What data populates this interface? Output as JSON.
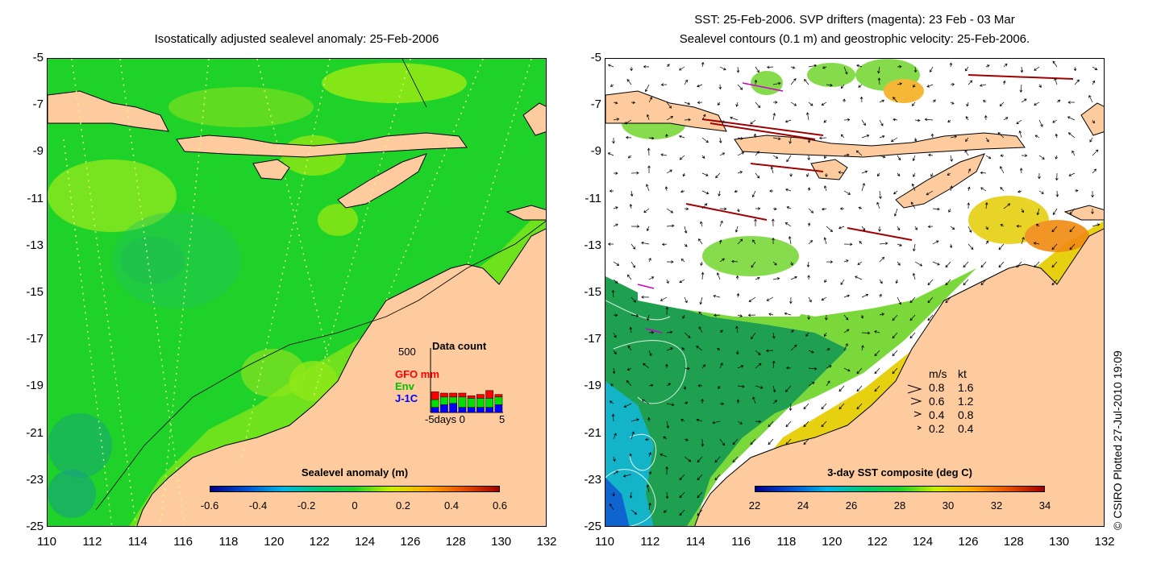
{
  "left_panel": {
    "title": "Isostatically adjusted sealevel anomaly: 25-Feb-2006",
    "colorbar": {
      "title": "Sealevel anomaly (m)",
      "ticks": [
        "-0.6",
        "-0.4",
        "-0.2",
        "0",
        "0.2",
        "0.4",
        "0.6"
      ],
      "colors": [
        "#00008b",
        "#0050d0",
        "#00b4e6",
        "#00c878",
        "#1fd22a",
        "#c8f000",
        "#ffaa00",
        "#e65000",
        "#a00000"
      ]
    },
    "data_count": {
      "title": "Data count",
      "ymax_label": "500",
      "series": [
        "GFO mm",
        "Env",
        "J-1C"
      ],
      "series_colors": [
        "#ff0000",
        "#00e000",
        "#0000ff"
      ],
      "xlabel": "-5days 0",
      "xmax_label": "5",
      "bars": [
        {
          "gfo": 60,
          "env": 60,
          "j1c": 40
        },
        {
          "gfo": 30,
          "env": 60,
          "j1c": 60
        },
        {
          "gfo": 30,
          "env": 50,
          "j1c": 70
        },
        {
          "gfo": 30,
          "env": 80,
          "j1c": 40
        },
        {
          "gfo": 20,
          "env": 70,
          "j1c": 40
        },
        {
          "gfo": 30,
          "env": 70,
          "j1c": 40
        },
        {
          "gfo": 60,
          "env": 70,
          "j1c": 40
        },
        {
          "gfo": 20,
          "env": 60,
          "j1c": 60
        }
      ]
    }
  },
  "right_panel": {
    "title_line1": "SST: 25-Feb-2006. SVP drifters (magenta): 23 Feb - 03 Mar",
    "title_line2": "Sealevel contours (0.1 m) and geostrophic velocity: 25-Feb-2006.",
    "colorbar": {
      "title": "3-day SST composite (deg C)",
      "ticks": [
        "22",
        "24",
        "26",
        "28",
        "30",
        "32",
        "34"
      ],
      "colors": [
        "#00008b",
        "#0050d0",
        "#00b4e6",
        "#00c878",
        "#1fd22a",
        "#c8f000",
        "#ffaa00",
        "#e65000",
        "#a00000"
      ]
    },
    "velocity_legend": {
      "header_ms": "m/s",
      "header_kt": "kt",
      "rows": [
        {
          "ms": "0.8",
          "kt": "1.6"
        },
        {
          "ms": "0.6",
          "kt": "1.2"
        },
        {
          "ms": "0.4",
          "kt": "0.8"
        },
        {
          "ms": "0.2",
          "kt": "0.4"
        }
      ]
    }
  },
  "axes": {
    "lon_ticks": [
      "110",
      "112",
      "114",
      "116",
      "118",
      "120",
      "122",
      "124",
      "126",
      "128",
      "130",
      "132"
    ],
    "lat_ticks": [
      "-5",
      "-7",
      "-9",
      "-11",
      "-13",
      "-15",
      "-17",
      "-19",
      "-21",
      "-23",
      "-25"
    ],
    "lon_range": [
      110,
      132
    ],
    "lat_range": [
      -25,
      -5
    ]
  },
  "credit": "© CSIRO Plotted 27-Jul-2010 19:09",
  "colors": {
    "land": "#fdcb9e",
    "ocean_left": "#1fd22a",
    "cloud": "#ffffff",
    "drifter": "#cc00cc"
  }
}
